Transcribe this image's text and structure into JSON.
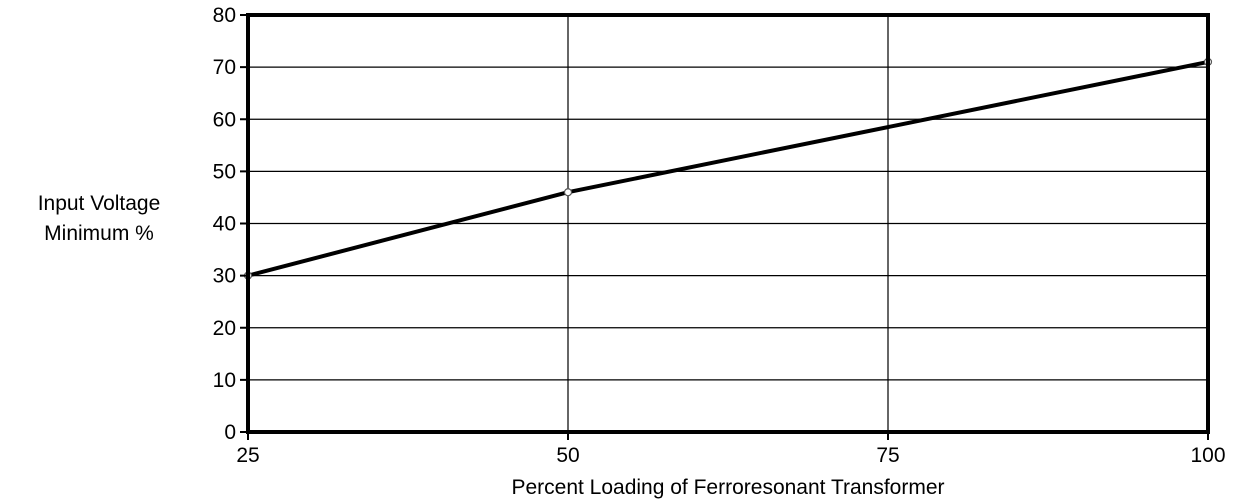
{
  "chart_data": {
    "type": "line",
    "title": "",
    "xlabel": "Percent Loading of Ferroresonant Transformer",
    "ylabel_lines": [
      "Input Voltage",
      "Minimum %"
    ],
    "x": [
      25,
      50,
      100
    ],
    "series": [
      {
        "values": [
          30,
          46,
          71
        ]
      }
    ],
    "xlim": [
      25,
      100
    ],
    "ylim": [
      0,
      80
    ],
    "xticks": [
      25,
      50,
      75,
      100
    ],
    "yticks": [
      0,
      10,
      20,
      30,
      40,
      50,
      60,
      70,
      80
    ],
    "grid": true,
    "legend": "none",
    "colors": {
      "line": "#000000",
      "grid": "#000000",
      "marker_fill": "#ffffff"
    }
  }
}
